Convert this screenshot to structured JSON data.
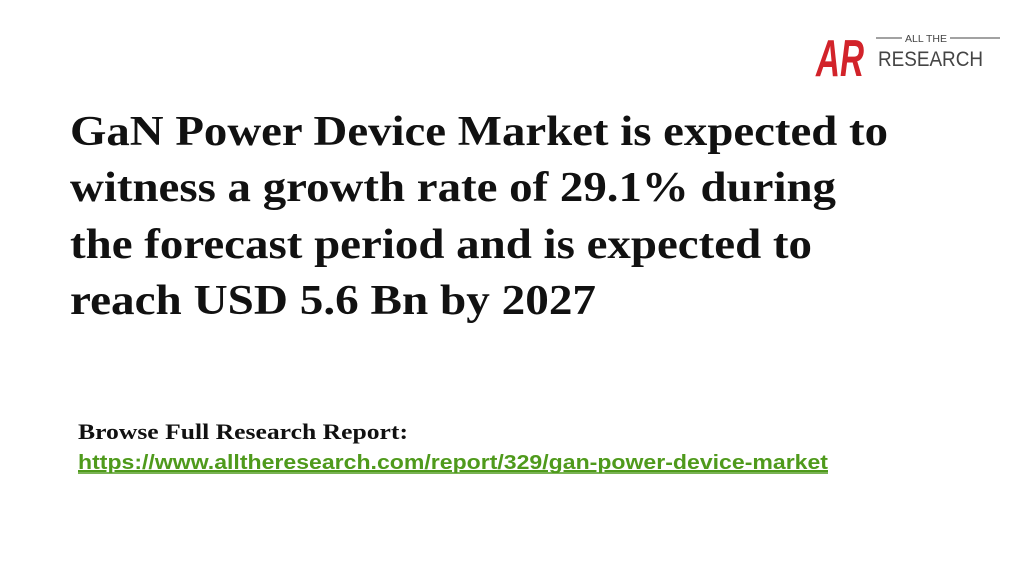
{
  "logo": {
    "mark": "AR",
    "top": "ALL THE",
    "bottom": "RESEARCH"
  },
  "headline": {
    "lines": [
      "GaN Power Device Market is expected to",
      "witness a growth rate of 29.1% during",
      "the forecast period and is expected to",
      "reach USD 5.6 Bn by 2027"
    ]
  },
  "browse": {
    "label": "Browse Full Research Report:",
    "link": "https://www.alltheresearch.com/report/329/gan-power-device-market"
  }
}
